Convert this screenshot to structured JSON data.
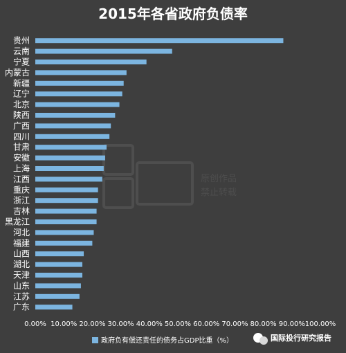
{
  "chart_data": {
    "type": "bar",
    "orientation": "horizontal",
    "title": "2015年各省政府负债率",
    "categories": [
      "贵州",
      "云南",
      "宁夏",
      "内蒙古",
      "新疆",
      "辽宁",
      "北京",
      "陕西",
      "广西",
      "四川",
      "甘肃",
      "安徽",
      "上海",
      "江西",
      "重庆",
      "浙江",
      "吉林",
      "黑龙江",
      "河北",
      "福建",
      "山西",
      "湖北",
      "天津",
      "山东",
      "江苏",
      "广东"
    ],
    "series": [
      {
        "name": "政府负有偿还责任的债务占GDP比重（%）",
        "values": [
          0.87,
          0.48,
          0.39,
          0.32,
          0.31,
          0.305,
          0.295,
          0.28,
          0.265,
          0.26,
          0.25,
          0.245,
          0.24,
          0.235,
          0.22,
          0.22,
          0.215,
          0.215,
          0.205,
          0.2,
          0.17,
          0.165,
          0.165,
          0.16,
          0.155,
          0.13
        ]
      }
    ],
    "xlim": [
      0,
      1.0
    ],
    "xticks": [
      "0.00%",
      "10.00%",
      "20.00%",
      "30.00%",
      "40.00%",
      "50.00%",
      "60.00%",
      "70.00%",
      "80.00%",
      "90.00%",
      "100.00%"
    ],
    "bar_color": "#7cb5e0",
    "grid": false,
    "legend_position": "bottom"
  },
  "watermark": {
    "text1": "原创作品",
    "text2": "禁止转载"
  },
  "brand": {
    "text": "国际投行研究报告"
  }
}
